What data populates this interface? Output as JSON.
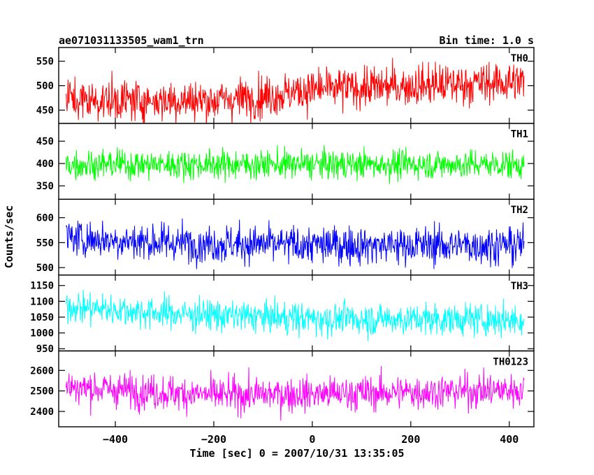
{
  "chart_data": {
    "type": "line",
    "title": "ae071031133505_wam1_trn",
    "subtitle": "Bin time: 1.0 s",
    "xlabel": "Time [sec] 0 = 2007/10/31 13:35:05",
    "ylabel": "Counts/sec",
    "xlim": [
      -515,
      450
    ],
    "x_range": [
      -500,
      430
    ],
    "x_step": 1.0,
    "xticks": [
      -400,
      -200,
      0,
      200,
      400
    ],
    "grid": false,
    "legend": "none",
    "panels": [
      {
        "name": "TH0",
        "color": "#ff0000",
        "ylim": [
          423,
          578
        ],
        "yticks": [
          450,
          500,
          550
        ],
        "profile": [
          [
            -500,
            470
          ],
          [
            -200,
            470
          ],
          [
            -100,
            478
          ],
          [
            0,
            492
          ],
          [
            200,
            500
          ],
          [
            430,
            508
          ]
        ],
        "noise": 30
      },
      {
        "name": "TH1",
        "color": "#00ff00",
        "ylim": [
          320,
          490
        ],
        "yticks": [
          350,
          400,
          450
        ],
        "profile": [
          [
            -500,
            398
          ],
          [
            430,
            398
          ]
        ],
        "noise": 23
      },
      {
        "name": "TH2",
        "color": "#0000ff",
        "ylim": [
          485,
          637
        ],
        "yticks": [
          500,
          550,
          600
        ],
        "profile": [
          [
            -500,
            560
          ],
          [
            -300,
            550
          ],
          [
            0,
            545
          ],
          [
            430,
            545
          ]
        ],
        "noise": 27
      },
      {
        "name": "TH3",
        "color": "#00ffff",
        "ylim": [
          943,
          1183
        ],
        "yticks": [
          950,
          1000,
          1050,
          1100,
          1150
        ],
        "profile": [
          [
            -500,
            1085
          ],
          [
            -300,
            1062
          ],
          [
            0,
            1045
          ],
          [
            430,
            1042
          ]
        ],
        "noise": 36
      },
      {
        "name": "TH0123",
        "color": "#ff00ff",
        "ylim": [
          2325,
          2695
        ],
        "yticks": [
          2400,
          2500,
          2600
        ],
        "profile": [
          [
            -500,
            2520
          ],
          [
            -200,
            2480
          ],
          [
            0,
            2485
          ],
          [
            430,
            2505
          ]
        ],
        "noise": 60
      }
    ]
  }
}
